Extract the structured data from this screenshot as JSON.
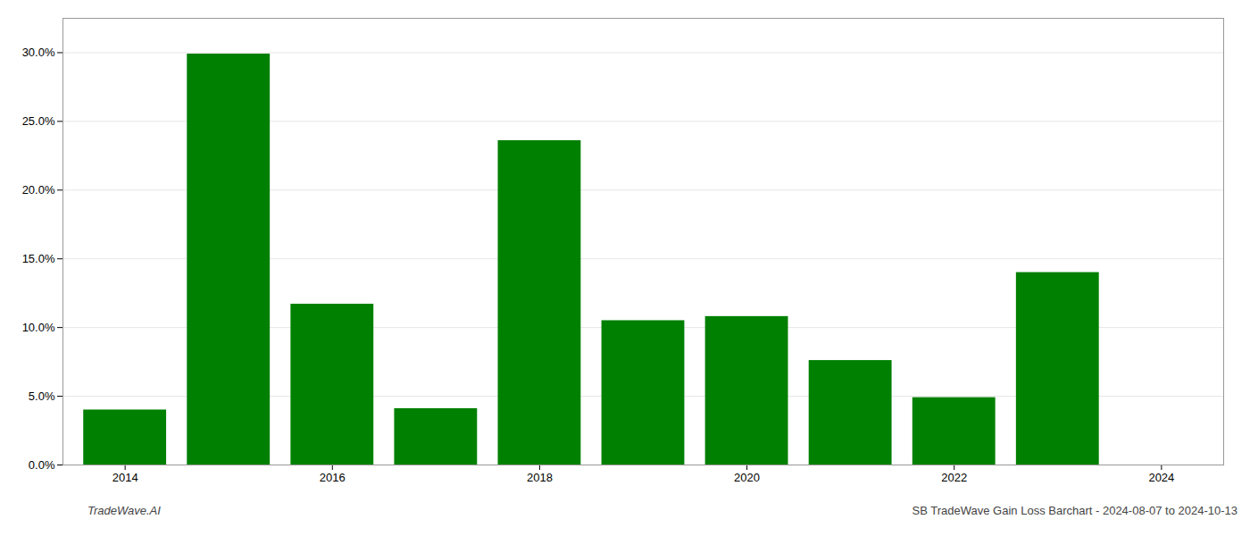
{
  "chart_data": {
    "type": "bar",
    "x": [
      2014,
      2015,
      2016,
      2017,
      2018,
      2019,
      2020,
      2021,
      2022,
      2023
    ],
    "values": [
      0.04,
      0.299,
      0.117,
      0.041,
      0.236,
      0.105,
      0.108,
      0.076,
      0.049,
      0.14
    ],
    "color": "#008000",
    "xlim": [
      2013.4,
      2024.6
    ],
    "xticks": [
      2014,
      2016,
      2018,
      2020,
      2022,
      2024
    ],
    "ylim": [
      0,
      0.325
    ],
    "yticks": [
      {
        "value": 0.0,
        "label": "0.0%"
      },
      {
        "value": 0.05,
        "label": "5.0%"
      },
      {
        "value": 0.1,
        "label": "10.0%"
      },
      {
        "value": 0.15,
        "label": "15.0%"
      },
      {
        "value": 0.2,
        "label": "20.0%"
      },
      {
        "value": 0.25,
        "label": "25.0%"
      },
      {
        "value": 0.3,
        "label": "30.0%"
      }
    ],
    "grid": true,
    "annotations": [
      "TradeWave.AI",
      "SB TradeWave Gain Loss Barchart - 2024-08-07 to 2024-10-13"
    ]
  }
}
